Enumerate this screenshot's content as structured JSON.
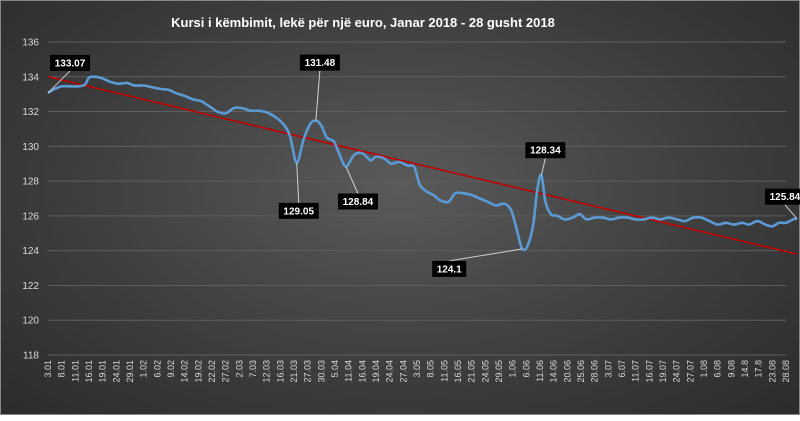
{
  "chart_data": {
    "type": "line",
    "title": "Kursi i këmbimit, lekë për një euro, Janar 2018 - 28 gusht 2018",
    "xlabel": "",
    "ylabel": "",
    "ylim": [
      118,
      136
    ],
    "yticks": [
      118,
      120,
      122,
      124,
      126,
      128,
      130,
      132,
      134,
      136
    ],
    "grid": true,
    "colors": {
      "series": "#5b9bd5",
      "trend": "#c00000"
    },
    "x_tick_labels": [
      "3.01",
      "8.01",
      "11.01",
      "16.01",
      "19.01",
      "24.01",
      "29.01",
      "1.02",
      "6.02",
      "9.02",
      "14.02",
      "19.02",
      "22.02",
      "27.02",
      "2.03",
      "7.03",
      "12.03",
      "16.03",
      "21.03",
      "27.03",
      "30.03",
      "5.04",
      "11.04",
      "16.04",
      "19.04",
      "24.04",
      "27.04",
      "3.05",
      "8.05",
      "11.05",
      "16.05",
      "21.05",
      "24.05",
      "29.05",
      "1.06",
      "6.06",
      "11.06",
      "14.06",
      "20.06",
      "25.06",
      "28.06",
      "3.07",
      "6.07",
      "11.07",
      "16.07",
      "19.07",
      "24.07",
      "27.07",
      "1.08",
      "6.08",
      "9.08",
      "14.8",
      "17.8",
      "23.08",
      "28.08"
    ],
    "series": [
      {
        "values": [
          [
            0,
            133.07
          ],
          [
            0.5,
            133.3
          ],
          [
            1,
            133.45
          ],
          [
            1.6,
            133.45
          ],
          [
            2.2,
            133.45
          ],
          [
            2.7,
            133.55
          ],
          [
            3.0,
            133.95
          ],
          [
            3.5,
            134.0
          ],
          [
            4.0,
            133.9
          ],
          [
            4.6,
            133.7
          ],
          [
            5.2,
            133.6
          ],
          [
            5.8,
            133.65
          ],
          [
            6.3,
            133.5
          ],
          [
            7.0,
            133.5
          ],
          [
            7.6,
            133.4
          ],
          [
            8.2,
            133.3
          ],
          [
            8.8,
            133.25
          ],
          [
            9.4,
            133.05
          ],
          [
            10.0,
            132.9
          ],
          [
            10.6,
            132.7
          ],
          [
            11.2,
            132.6
          ],
          [
            11.8,
            132.3
          ],
          [
            12.4,
            132.0
          ],
          [
            13.0,
            131.9
          ],
          [
            13.6,
            132.2
          ],
          [
            14.2,
            132.2
          ],
          [
            14.8,
            132.05
          ],
          [
            15.4,
            132.05
          ],
          [
            16.0,
            131.95
          ],
          [
            16.6,
            131.7
          ],
          [
            17.2,
            131.3
          ],
          [
            17.7,
            130.6
          ],
          [
            18.2,
            129.05
          ],
          [
            18.7,
            130.4
          ],
          [
            19.2,
            131.3
          ],
          [
            19.6,
            131.48
          ],
          [
            20.0,
            131.2
          ],
          [
            20.4,
            130.5
          ],
          [
            20.9,
            130.3
          ],
          [
            21.3,
            129.6
          ],
          [
            21.8,
            128.84
          ],
          [
            22.4,
            129.5
          ],
          [
            23.0,
            129.6
          ],
          [
            23.6,
            129.2
          ],
          [
            24.0,
            129.4
          ],
          [
            24.6,
            129.3
          ],
          [
            25.1,
            129.0
          ],
          [
            25.7,
            129.1
          ],
          [
            26.3,
            128.9
          ],
          [
            26.8,
            128.8
          ],
          [
            27.2,
            127.8
          ],
          [
            27.7,
            127.4
          ],
          [
            28.2,
            127.2
          ],
          [
            28.7,
            126.9
          ],
          [
            29.3,
            126.8
          ],
          [
            29.8,
            127.3
          ],
          [
            30.4,
            127.3
          ],
          [
            31.0,
            127.2
          ],
          [
            31.6,
            127.0
          ],
          [
            32.2,
            126.8
          ],
          [
            32.8,
            126.6
          ],
          [
            33.4,
            126.7
          ],
          [
            33.9,
            126.3
          ],
          [
            34.3,
            125.2
          ],
          [
            34.7,
            124.1
          ],
          [
            35.1,
            124.3
          ],
          [
            35.5,
            125.5
          ],
          [
            35.8,
            127.5
          ],
          [
            36.1,
            128.34
          ],
          [
            36.4,
            126.8
          ],
          [
            36.8,
            126.1
          ],
          [
            37.3,
            126.0
          ],
          [
            37.8,
            125.8
          ],
          [
            38.4,
            125.9
          ],
          [
            38.9,
            126.1
          ],
          [
            39.4,
            125.8
          ],
          [
            40.0,
            125.9
          ],
          [
            40.6,
            125.9
          ],
          [
            41.2,
            125.8
          ],
          [
            41.8,
            125.9
          ],
          [
            42.4,
            125.9
          ],
          [
            43.0,
            125.8
          ],
          [
            43.6,
            125.8
          ],
          [
            44.2,
            125.9
          ],
          [
            44.8,
            125.8
          ],
          [
            45.4,
            125.9
          ],
          [
            46.0,
            125.8
          ],
          [
            46.6,
            125.7
          ],
          [
            47.2,
            125.9
          ],
          [
            47.8,
            125.9
          ],
          [
            48.4,
            125.7
          ],
          [
            49.0,
            125.5
          ],
          [
            49.6,
            125.6
          ],
          [
            50.2,
            125.5
          ],
          [
            50.8,
            125.6
          ],
          [
            51.3,
            125.5
          ],
          [
            51.9,
            125.7
          ],
          [
            52.5,
            125.5
          ],
          [
            53.0,
            125.4
          ],
          [
            53.5,
            125.6
          ],
          [
            54.0,
            125.6
          ],
          [
            54.5,
            125.8
          ],
          [
            54.8,
            125.84
          ]
        ]
      }
    ],
    "trendline": {
      "start": [
        0,
        134.0
      ],
      "end": [
        54.8,
        123.8
      ]
    },
    "annotations": [
      {
        "text": "133.07",
        "x": 0,
        "y": 133.07
      },
      {
        "text": "131.48",
        "x": 19.6,
        "y": 131.48
      },
      {
        "text": "129.05",
        "x": 18.2,
        "y": 129.05
      },
      {
        "text": "128.84",
        "x": 21.8,
        "y": 128.84
      },
      {
        "text": "128.34",
        "x": 36.1,
        "y": 128.34
      },
      {
        "text": "124.1",
        "x": 34.7,
        "y": 124.1
      },
      {
        "text": "125.84",
        "x": 54.8,
        "y": 125.84
      }
    ]
  }
}
